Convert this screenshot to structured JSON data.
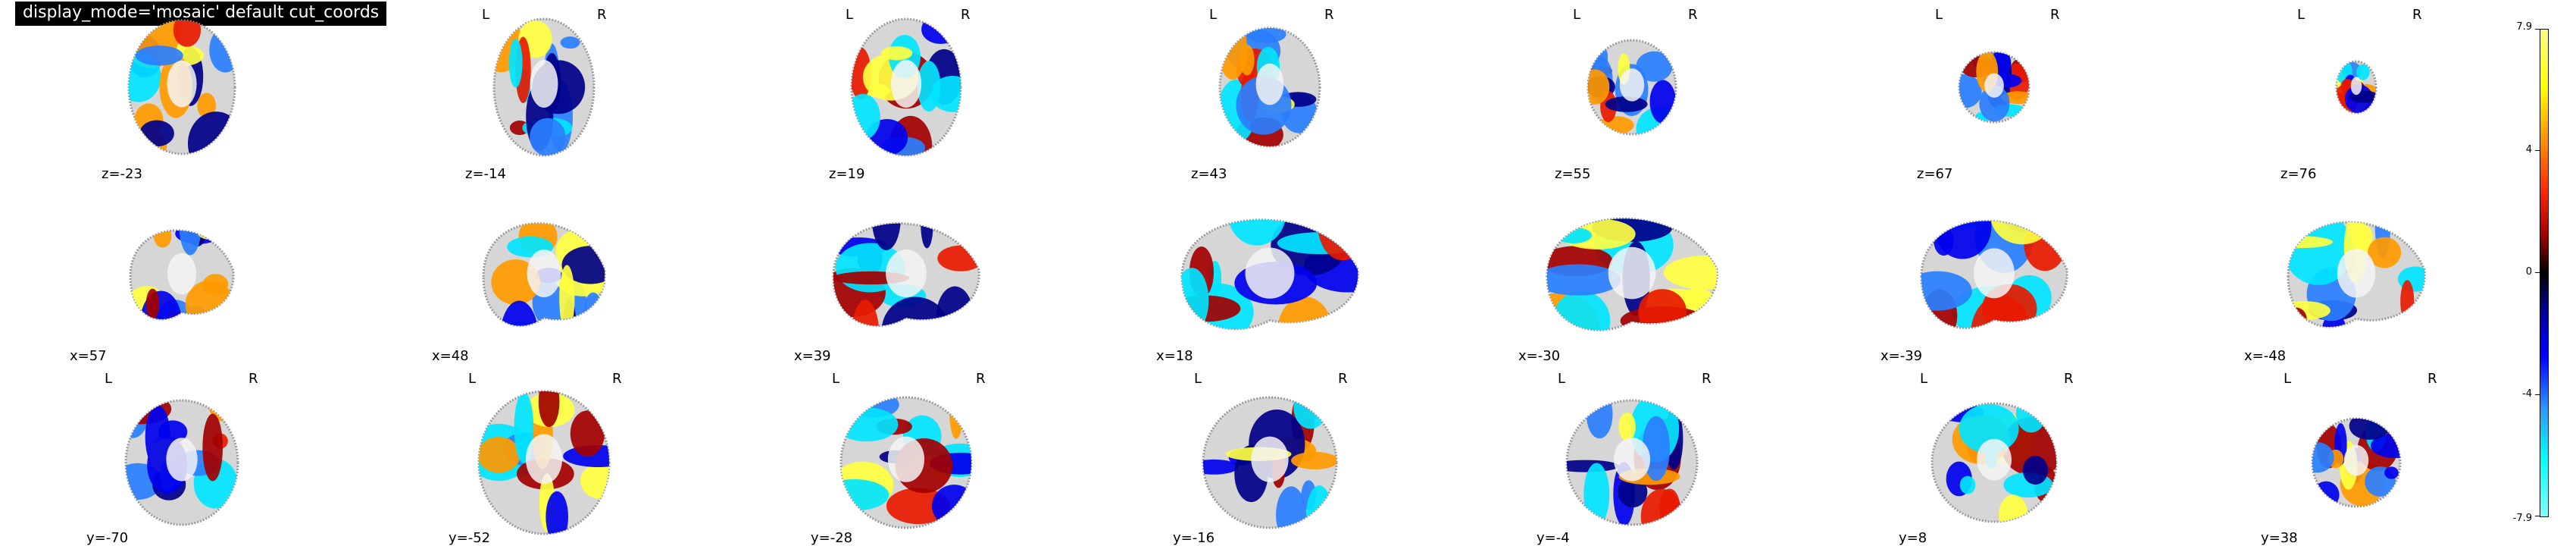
{
  "title": "display_mode='mosaic' default cut_coords",
  "orientation": {
    "left": "L",
    "right": "R"
  },
  "rows": [
    {
      "view": "axial",
      "cuts": [
        "z=-23",
        "z=-14",
        "z=19",
        "z=43",
        "z=55",
        "z=67",
        "z=76"
      ]
    },
    {
      "view": "sagittal",
      "cuts": [
        "x=57",
        "x=48",
        "x=39",
        "x=18",
        "x=-30",
        "x=-39",
        "x=-48"
      ]
    },
    {
      "view": "coronal",
      "cuts": [
        "y=-70",
        "y=-52",
        "y=-28",
        "y=-16",
        "y=-4",
        "y=8",
        "y=38"
      ]
    }
  ],
  "colorbar": {
    "ticks": [
      "7.9",
      "4",
      "0",
      "-4",
      "-7.9"
    ],
    "colormap": "cold_hot",
    "colors": {
      "max": "#ffff7f",
      "mid": "#000000",
      "min": "#7fffff"
    }
  }
}
